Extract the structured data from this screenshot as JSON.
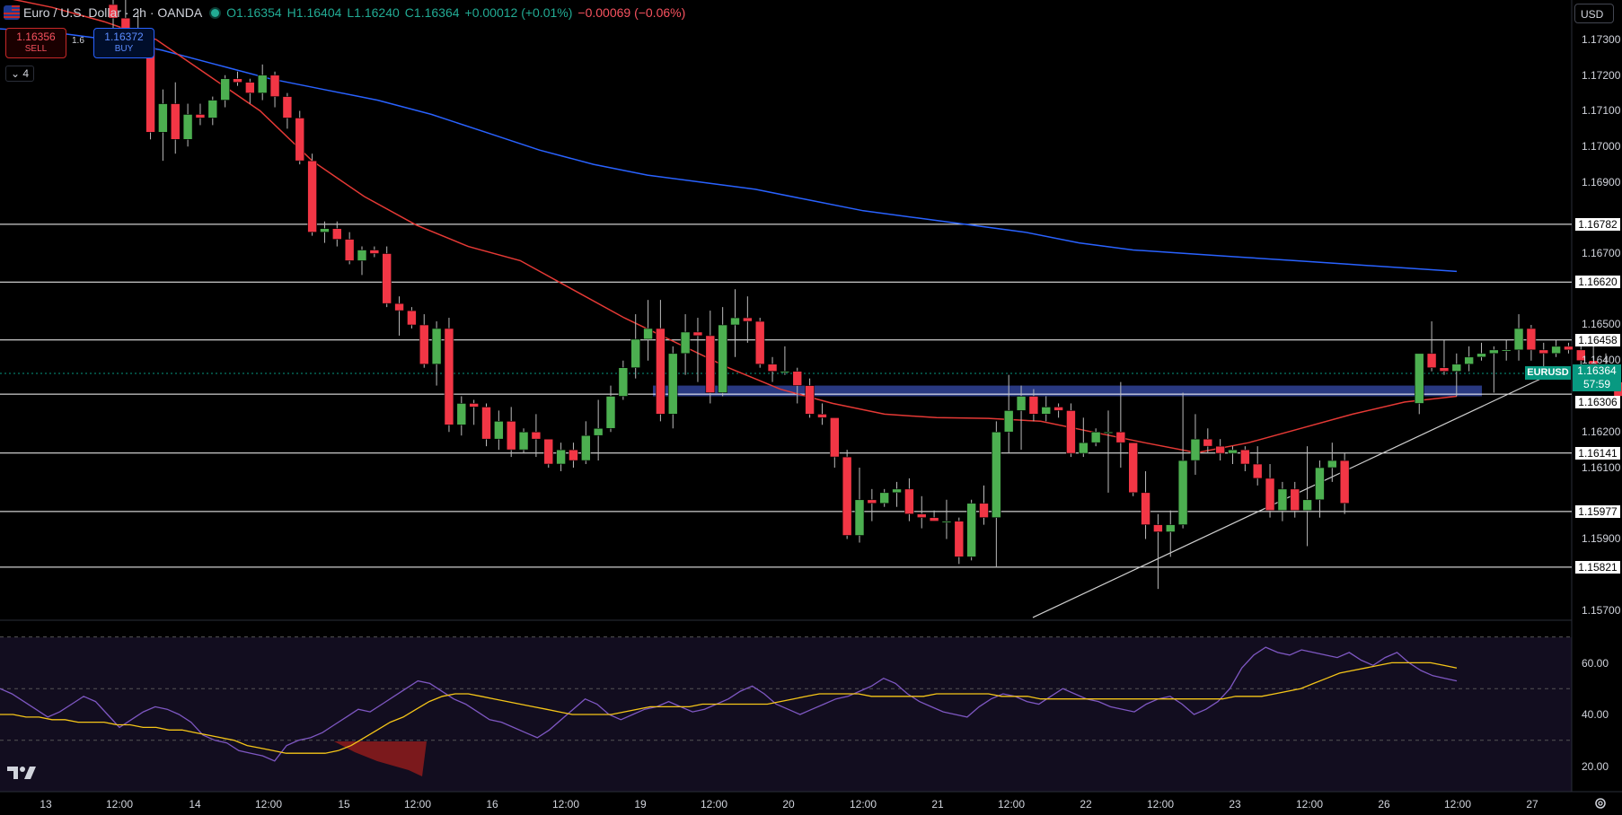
{
  "header": {
    "symbol": "Euro / U.S. Dollar · 2h · OANDA",
    "open": "O1.16354",
    "high": "H1.16404",
    "low": "L1.16240",
    "close": "C1.16364",
    "change": "+0.00012 (+0.01%)",
    "change2": "−0.00069 (−0.06%)"
  },
  "trade": {
    "sell_price": "1.16356",
    "sell_label": "SELL",
    "buy_price": "1.16372",
    "buy_label": "BUY",
    "spread": "1.6",
    "lots": "4"
  },
  "currency": "USD",
  "price_tag": {
    "symbol": "EURUSD",
    "price": "1.16364",
    "countdown": "57:59"
  },
  "colors": {
    "background": "#000000",
    "up": "#4caf50",
    "down": "#f23645",
    "ma_fast": "#e53935",
    "ma_slow": "#2962ff",
    "rsi": "#7e57c2",
    "rsi_ma": "#f5c518",
    "level_lines": "#ffffff",
    "zone": "#2e3f8f"
  },
  "chart_data": {
    "type": "candlestick",
    "price_axis_ticks": [
      "1.17300",
      "1.17200",
      "1.17100",
      "1.17000",
      "1.16900",
      "1.16700",
      "1.16500",
      "1.16400",
      "1.16200",
      "1.16100",
      "1.15900",
      "1.15700"
    ],
    "levels": [
      "1.16782",
      "1.16620",
      "1.16458",
      "1.16306",
      "1.16141",
      "1.15977",
      "1.15821"
    ],
    "x_tick_labels": [
      "13",
      "12:00",
      "14",
      "12:00",
      "15",
      "12:00",
      "16",
      "12:00",
      "19",
      "12:00",
      "20",
      "12:00",
      "21",
      "12:00",
      "22",
      "12:00",
      "23",
      "12:00",
      "26",
      "12:00",
      "27"
    ],
    "candles": [
      [
        1.17398,
        1.1742,
        1.1732,
        1.1736
      ],
      [
        1.1736,
        1.1742,
        1.173,
        1.1733
      ],
      [
        1.1733,
        1.1738,
        1.1725,
        1.1728
      ],
      [
        1.1728,
        1.1733,
        1.1702,
        1.1704
      ],
      [
        1.1704,
        1.1716,
        1.1696,
        1.1712
      ],
      [
        1.1712,
        1.1718,
        1.1698,
        1.1702
      ],
      [
        1.1702,
        1.1712,
        1.17,
        1.1709
      ],
      [
        1.1709,
        1.1712,
        1.1706,
        1.1708
      ],
      [
        1.1708,
        1.1714,
        1.1706,
        1.1713
      ],
      [
        1.1713,
        1.172,
        1.1711,
        1.1719
      ],
      [
        1.1719,
        1.1721,
        1.1717,
        1.1718
      ],
      [
        1.1718,
        1.1719,
        1.1712,
        1.1715
      ],
      [
        1.1715,
        1.1723,
        1.1713,
        1.172
      ],
      [
        1.172,
        1.1721,
        1.1711,
        1.1714
      ],
      [
        1.1714,
        1.1715,
        1.1705,
        1.1708
      ],
      [
        1.1708,
        1.171,
        1.1695,
        1.1696
      ],
      [
        1.1696,
        1.1698,
        1.1675,
        1.1676
      ],
      [
        1.1676,
        1.1679,
        1.1673,
        1.1677
      ],
      [
        1.1677,
        1.1679,
        1.1672,
        1.1674
      ],
      [
        1.1674,
        1.1676,
        1.1667,
        1.1668
      ],
      [
        1.1668,
        1.1672,
        1.1664,
        1.1671
      ],
      [
        1.1671,
        1.1672,
        1.1669,
        1.167
      ],
      [
        1.167,
        1.1672,
        1.1655,
        1.1656
      ],
      [
        1.1656,
        1.1658,
        1.1647,
        1.1654
      ],
      [
        1.1654,
        1.1655,
        1.1649,
        1.165
      ],
      [
        1.165,
        1.1653,
        1.1638,
        1.1639
      ],
      [
        1.1639,
        1.1651,
        1.1633,
        1.1649
      ],
      [
        1.1649,
        1.1652,
        1.162,
        1.1622
      ],
      [
        1.1622,
        1.163,
        1.1619,
        1.1628
      ],
      [
        1.1628,
        1.1629,
        1.1622,
        1.1627
      ],
      [
        1.1627,
        1.1628,
        1.1616,
        1.1618
      ],
      [
        1.1618,
        1.1626,
        1.1615,
        1.1623
      ],
      [
        1.1623,
        1.1627,
        1.1613,
        1.1615
      ],
      [
        1.1615,
        1.1621,
        1.1614,
        1.162
      ],
      [
        1.162,
        1.1625,
        1.1613,
        1.1618
      ],
      [
        1.1618,
        1.1618,
        1.161,
        1.1611
      ],
      [
        1.1611,
        1.1617,
        1.1609,
        1.1615
      ],
      [
        1.1615,
        1.1617,
        1.161,
        1.1612
      ],
      [
        1.1612,
        1.1623,
        1.1611,
        1.1619
      ],
      [
        1.1619,
        1.1629,
        1.1612,
        1.1621
      ],
      [
        1.1621,
        1.1633,
        1.162,
        1.163
      ],
      [
        1.163,
        1.164,
        1.1629,
        1.1638
      ],
      [
        1.1638,
        1.1653,
        1.1635,
        1.1646
      ],
      [
        1.1646,
        1.1657,
        1.164,
        1.1649
      ],
      [
        1.1649,
        1.1657,
        1.1623,
        1.1625
      ],
      [
        1.1625,
        1.1644,
        1.1621,
        1.1642
      ],
      [
        1.1642,
        1.1653,
        1.1636,
        1.1648
      ],
      [
        1.1648,
        1.1652,
        1.1634,
        1.1647
      ],
      [
        1.1647,
        1.1654,
        1.1628,
        1.1631
      ],
      [
        1.1631,
        1.1655,
        1.163,
        1.165
      ],
      [
        1.165,
        1.166,
        1.1641,
        1.1652
      ],
      [
        1.1652,
        1.1658,
        1.1645,
        1.1651
      ],
      [
        1.1651,
        1.1652,
        1.1638,
        1.1639
      ],
      [
        1.1639,
        1.1641,
        1.1634,
        1.1637
      ],
      [
        1.1637,
        1.1644,
        1.1636,
        1.1637
      ],
      [
        1.1637,
        1.1638,
        1.1628,
        1.1633
      ],
      [
        1.1633,
        1.1635,
        1.1624,
        1.1625
      ],
      [
        1.1625,
        1.1628,
        1.1622,
        1.1624
      ],
      [
        1.1624,
        1.1624,
        1.161,
        1.1613
      ],
      [
        1.1613,
        1.1615,
        1.159,
        1.1591
      ],
      [
        1.1591,
        1.161,
        1.1589,
        1.1601
      ],
      [
        1.1601,
        1.1604,
        1.1595,
        1.16
      ],
      [
        1.16,
        1.1604,
        1.1599,
        1.1603
      ],
      [
        1.1603,
        1.1606,
        1.1599,
        1.1604
      ],
      [
        1.1604,
        1.1607,
        1.1595,
        1.1597
      ],
      [
        1.1597,
        1.1602,
        1.1593,
        1.1596
      ],
      [
        1.1596,
        1.1598,
        1.1595,
        1.1595
      ],
      [
        1.1595,
        1.1601,
        1.159,
        1.1595
      ],
      [
        1.1595,
        1.1596,
        1.1583,
        1.1585
      ],
      [
        1.1585,
        1.1601,
        1.1584,
        1.16
      ],
      [
        1.16,
        1.1605,
        1.1594,
        1.1596
      ],
      [
        1.1596,
        1.1623,
        1.1582,
        1.162
      ],
      [
        1.162,
        1.1636,
        1.1614,
        1.1626
      ],
      [
        1.1626,
        1.1633,
        1.1615,
        1.163
      ],
      [
        1.163,
        1.1632,
        1.1623,
        1.1625
      ],
      [
        1.1625,
        1.163,
        1.1623,
        1.1627
      ],
      [
        1.1627,
        1.1628,
        1.1624,
        1.1626
      ],
      [
        1.1626,
        1.1628,
        1.1613,
        1.1614
      ],
      [
        1.1614,
        1.1624,
        1.1613,
        1.1617
      ],
      [
        1.1617,
        1.1621,
        1.1616,
        1.162
      ],
      [
        1.162,
        1.1626,
        1.1603,
        1.162
      ],
      [
        1.162,
        1.1634,
        1.161,
        1.1617
      ],
      [
        1.1617,
        1.1617,
        1.1602,
        1.1603
      ],
      [
        1.1603,
        1.1609,
        1.159,
        1.1594
      ],
      [
        1.1594,
        1.1597,
        1.1576,
        1.1592
      ],
      [
        1.1592,
        1.1598,
        1.1585,
        1.1594
      ],
      [
        1.1594,
        1.1631,
        1.1593,
        1.1612
      ],
      [
        1.1612,
        1.1625,
        1.1608,
        1.1618
      ],
      [
        1.1618,
        1.1621,
        1.1614,
        1.1616
      ],
      [
        1.1616,
        1.1618,
        1.1612,
        1.1614
      ],
      [
        1.1614,
        1.1616,
        1.1611,
        1.1615
      ],
      [
        1.1615,
        1.1616,
        1.1609,
        1.1611
      ],
      [
        1.1611,
        1.1616,
        1.1605,
        1.1607
      ],
      [
        1.1607,
        1.1611,
        1.1596,
        1.1598
      ],
      [
        1.1598,
        1.1606,
        1.1595,
        1.1604
      ],
      [
        1.1604,
        1.1606,
        1.1596,
        1.1598
      ],
      [
        1.1598,
        1.1616,
        1.1588,
        1.1601
      ],
      [
        1.1601,
        1.1612,
        1.1596,
        1.161
      ],
      [
        1.161,
        1.1617,
        1.1606,
        1.1612
      ],
      [
        1.1612,
        1.1614,
        1.1597,
        1.16
      ],
      [
        1.1628,
        1.1642,
        1.1625,
        1.1642
      ],
      [
        1.1642,
        1.1651,
        1.1637,
        1.1638
      ],
      [
        1.1638,
        1.1646,
        1.1636,
        1.1637
      ],
      [
        1.1637,
        1.1642,
        1.163,
        1.1639
      ],
      [
        1.1639,
        1.1644,
        1.1637,
        1.1641
      ],
      [
        1.1641,
        1.1645,
        1.164,
        1.1642
      ],
      [
        1.1642,
        1.1644,
        1.1631,
        1.1643
      ],
      [
        1.1643,
        1.1646,
        1.164,
        1.1643
      ],
      [
        1.1643,
        1.1653,
        1.164,
        1.1649
      ],
      [
        1.1649,
        1.165,
        1.164,
        1.1643
      ],
      [
        1.1643,
        1.1645,
        1.1638,
        1.1642
      ],
      [
        1.1642,
        1.1646,
        1.1641,
        1.1644
      ],
      [
        1.1644,
        1.1645,
        1.1642,
        1.1643
      ],
      [
        1.1643,
        1.1644,
        1.1637,
        1.164
      ],
      [
        1.164,
        1.1644,
        1.1635,
        1.1639
      ],
      [
        1.1639,
        1.1642,
        1.1632,
        1.1634
      ],
      [
        1.1634,
        1.1638,
        1.1629,
        1.163
      ],
      [
        1.163,
        1.1638,
        1.1624,
        1.16354
      ],
      [
        1.16354,
        1.16404,
        1.1624,
        1.16364
      ]
    ],
    "ma_fast": [
      1.1742,
      1.1739,
      1.1735,
      1.173,
      1.172,
      1.171,
      1.1696,
      1.1686,
      1.1678,
      1.1672,
      1.1668,
      1.166,
      1.1652,
      1.1645,
      1.1638,
      1.1632,
      1.1628,
      1.1625,
      1.1624,
      1.16238,
      1.1623,
      1.162,
      1.1617,
      1.16142,
      1.1617,
      1.1621,
      1.1625,
      1.16284,
      1.163
    ],
    "ma_slow": [
      1.1733,
      1.1732,
      1.173,
      1.1727,
      1.1723,
      1.1719,
      1.1716,
      1.1713,
      1.1709,
      1.1704,
      1.1699,
      1.1695,
      1.1692,
      1.169,
      1.1688,
      1.1685,
      1.1682,
      1.168,
      1.1678,
      1.1676,
      1.1673,
      1.1671,
      1.167,
      1.1669,
      1.1668,
      1.1667,
      1.1666,
      1.1665
    ],
    "trendline": {
      "from": 1.1568,
      "to": 1.16372
    },
    "support_zone": [
      1.163,
      1.1633
    ],
    "rsi": {
      "axis_ticks": [
        "60.00",
        "40.00",
        "20.00"
      ],
      "levels": [
        70,
        50,
        30
      ],
      "values": [
        50,
        48,
        45,
        42,
        39,
        41,
        44,
        47,
        45,
        40,
        35,
        38,
        41,
        43,
        42,
        40,
        37,
        32,
        30,
        29,
        26,
        25,
        24,
        22,
        28,
        30,
        31,
        33,
        36,
        39,
        42,
        41,
        44,
        47,
        50,
        53,
        52,
        49,
        46,
        44,
        41,
        38,
        37,
        35,
        33,
        31,
        34,
        38,
        42,
        46,
        44,
        40,
        38,
        40,
        42,
        43,
        45,
        43,
        41,
        42,
        44,
        46,
        49,
        51,
        48,
        44,
        42,
        40,
        42,
        44,
        46,
        47,
        49,
        51,
        54,
        52,
        48,
        45,
        43,
        41,
        40,
        39,
        43,
        46,
        48,
        47,
        45,
        44,
        47,
        50,
        48,
        46,
        45,
        43,
        42,
        41,
        44,
        46,
        47,
        44,
        40,
        42,
        45,
        50,
        58,
        63,
        66,
        64,
        63,
        65,
        64,
        63,
        62,
        64,
        61,
        59,
        62,
        64,
        60,
        57,
        55,
        54,
        53
      ],
      "ma": [
        40,
        40,
        39,
        39,
        38,
        38,
        37,
        37,
        37,
        36,
        36,
        35,
        35,
        34,
        34,
        33,
        32,
        31,
        30,
        28,
        27,
        26,
        25,
        25,
        25,
        25,
        26,
        28,
        31,
        34,
        37,
        39,
        42,
        45,
        47,
        48,
        48,
        47,
        46,
        45,
        44,
        43,
        42,
        41,
        40,
        40,
        40,
        40,
        41,
        42,
        43,
        43,
        43,
        43,
        44,
        44,
        44,
        44,
        44,
        44,
        45,
        46,
        47,
        48,
        48,
        48,
        48,
        47,
        47,
        47,
        47,
        47,
        48,
        48,
        48,
        48,
        48,
        47,
        47,
        47,
        46,
        46,
        46,
        46,
        46,
        46,
        46,
        46,
        46,
        46,
        46,
        46,
        46,
        46,
        46,
        47,
        47,
        47,
        48,
        49,
        50,
        52,
        54,
        56,
        57,
        58,
        59,
        60,
        60,
        60,
        60,
        59,
        58
      ]
    }
  }
}
